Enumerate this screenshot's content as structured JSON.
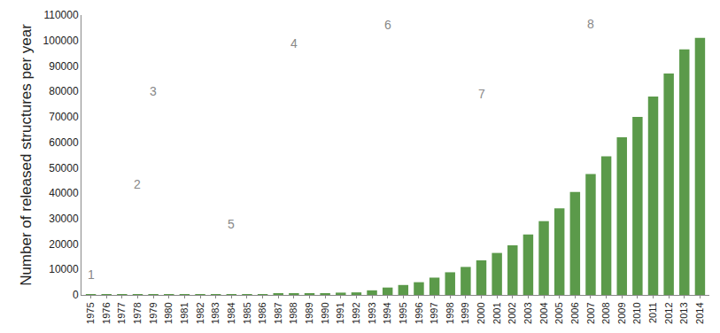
{
  "chart_data": {
    "type": "bar",
    "y_label": "Number of released structures per year",
    "categories": [
      "1975",
      "1976",
      "1977",
      "1978",
      "1979",
      "1980",
      "1981",
      "1982",
      "1983",
      "1984",
      "1985",
      "1986",
      "1987",
      "1988",
      "1989",
      "1990",
      "1991",
      "1992",
      "1993",
      "1994",
      "1995",
      "1996",
      "1997",
      "1998",
      "1999",
      "2000",
      "2001",
      "2002",
      "2003",
      "2004",
      "2005",
      "2006",
      "2007",
      "2008",
      "2009",
      "2010",
      "2011",
      "2012",
      "2013",
      "2014"
    ],
    "values": [
      10,
      20,
      50,
      70,
      90,
      120,
      150,
      180,
      220,
      260,
      280,
      300,
      350,
      400,
      500,
      700,
      900,
      1000,
      1800,
      2900,
      3900,
      5000,
      6800,
      8900,
      11000,
      13600,
      16500,
      19500,
      23800,
      29000,
      34000,
      40500,
      47500,
      54500,
      62000,
      70000,
      78000,
      87000,
      96500,
      101000
    ],
    "color": "#5b9a4a",
    "ylim": [
      0,
      110000
    ],
    "yticks": [
      0,
      10000,
      20000,
      30000,
      40000,
      50000,
      60000,
      70000,
      80000,
      90000,
      100000,
      110000
    ],
    "grid": false,
    "annotations": [
      {
        "text": "1",
        "category": "1975",
        "y": 8100
      },
      {
        "text": "2",
        "category": "1978",
        "y": 43500
      },
      {
        "text": "3",
        "category": "1979",
        "y": 80000
      },
      {
        "text": "4",
        "category": "1988",
        "y": 99000
      },
      {
        "text": "5",
        "category": "1984",
        "y": 27700
      },
      {
        "text": "6",
        "category": "1994",
        "y": 106000
      },
      {
        "text": "7",
        "category": "2000",
        "y": 79000
      },
      {
        "text": "8",
        "category": "2007",
        "y": 106600
      }
    ]
  }
}
